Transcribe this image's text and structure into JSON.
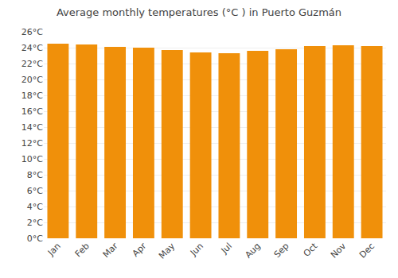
{
  "chart_data": {
    "type": "bar",
    "title": "Average monthly temperatures (°C ) in Puerto Guzmán",
    "categories": [
      "Jan",
      "Feb",
      "Mar",
      "Apr",
      "May",
      "Jun",
      "Jul",
      "Aug",
      "Sep",
      "Oct",
      "Nov",
      "Dec"
    ],
    "values": [
      24.5,
      24.4,
      24.1,
      24.0,
      23.7,
      23.4,
      23.3,
      23.6,
      23.8,
      24.2,
      24.3,
      24.2
    ],
    "color": "#F0900A",
    "ylim": [
      0,
      26
    ],
    "yticks": [
      {
        "value": 0,
        "label": "0°C"
      },
      {
        "value": 2,
        "label": "2°C"
      },
      {
        "value": 4,
        "label": "4°C"
      },
      {
        "value": 6,
        "label": "6°C"
      },
      {
        "value": 8,
        "label": "8°C"
      },
      {
        "value": 10,
        "label": "10°C"
      },
      {
        "value": 12,
        "label": "12°C"
      },
      {
        "value": 14,
        "label": "14°C"
      },
      {
        "value": 16,
        "label": "16°C"
      },
      {
        "value": 18,
        "label": "18°C"
      },
      {
        "value": 20,
        "label": "20°C"
      },
      {
        "value": 22,
        "label": "22°C"
      },
      {
        "value": 24,
        "label": "24°C"
      },
      {
        "value": 26,
        "label": "26°C"
      }
    ],
    "grid": true
  }
}
